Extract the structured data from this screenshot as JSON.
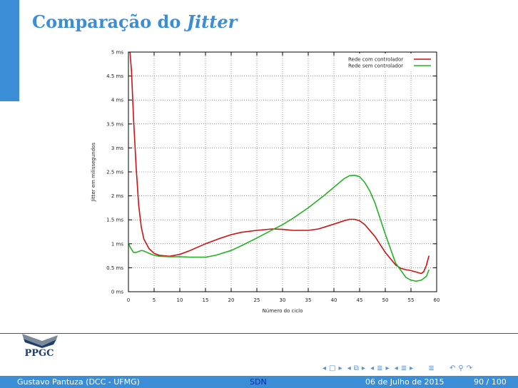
{
  "slide": {
    "title_main": "Comparação do ",
    "title_em": "Jitter"
  },
  "footer": {
    "author": "Gustavo Pantuza (DCC - UFMG)",
    "short_title": "SDN",
    "date": "06 de Julho de 2015",
    "page": "90 / 100"
  },
  "logo": {
    "text": "PPGC"
  },
  "nav_icons": [
    "prev-frame-icon",
    "frame-icon",
    "next-frame-icon",
    "prev-subsection-icon",
    "subsection-icon",
    "next-subsection-icon",
    "prev-section-icon",
    "section-icon",
    "next-section-icon",
    "toc-icon",
    "back-icon",
    "search-icon",
    "forward-icon"
  ],
  "colors": {
    "accent": "#3b8ed6",
    "series_red": "#cc1111",
    "series_green": "#22b322"
  },
  "chart_data": {
    "type": "line",
    "title": "",
    "xlabel": "Número do ciclo",
    "ylabel": "Jitter em milissegundos",
    "xlim": [
      0,
      60
    ],
    "ylim": [
      0,
      5
    ],
    "xticks": [
      0,
      5,
      10,
      15,
      20,
      25,
      30,
      35,
      40,
      45,
      50,
      55,
      60
    ],
    "xtick_labels": [
      "0",
      "5",
      "10",
      "15",
      "20",
      "25",
      "30",
      "35",
      "40",
      "45",
      "50",
      "55",
      "60"
    ],
    "yticks": [
      0,
      0.5,
      1,
      1.5,
      2,
      2.5,
      3,
      3.5,
      4,
      4.5,
      5
    ],
    "ytick_labels": [
      "0 ms",
      "0.5 ms",
      "1 ms",
      "1.5 ms",
      "2 ms",
      "2.5 ms",
      "3 ms",
      "3.5 ms",
      "4 ms",
      "4.5 ms",
      "5 ms"
    ],
    "grid": true,
    "legend_position": "top-right",
    "series": [
      {
        "name": "Rede com controlador",
        "color": "#cc1111",
        "x": [
          0.3,
          0.6,
          1,
          1.5,
          2,
          2.5,
          3,
          4,
          5,
          6,
          8,
          10,
          12,
          15,
          18,
          20,
          22,
          25,
          28,
          30,
          32,
          35,
          37,
          40,
          42,
          43,
          44,
          45,
          46,
          48,
          50,
          52,
          53,
          54,
          55,
          56,
          57,
          57.5,
          58,
          58.5
        ],
        "values": [
          5.0,
          4.6,
          3.6,
          2.6,
          1.8,
          1.35,
          1.1,
          0.9,
          0.8,
          0.76,
          0.74,
          0.78,
          0.86,
          1.0,
          1.12,
          1.19,
          1.24,
          1.28,
          1.31,
          1.3,
          1.28,
          1.28,
          1.31,
          1.41,
          1.48,
          1.51,
          1.51,
          1.48,
          1.4,
          1.15,
          0.82,
          0.56,
          0.49,
          0.46,
          0.44,
          0.41,
          0.38,
          0.42,
          0.55,
          0.75
        ]
      },
      {
        "name": "Rede sem controlador",
        "color": "#22b322",
        "x": [
          0,
          0.5,
          1,
          1.5,
          2,
          2.5,
          3,
          4,
          5,
          6,
          8,
          10,
          12,
          15,
          17,
          20,
          22,
          25,
          28,
          30,
          32,
          35,
          38,
          40,
          42,
          43,
          44,
          45,
          46,
          47,
          48,
          50,
          52,
          54,
          55,
          56,
          57,
          58,
          58.5
        ],
        "values": [
          1.0,
          0.9,
          0.82,
          0.82,
          0.84,
          0.86,
          0.85,
          0.8,
          0.76,
          0.74,
          0.73,
          0.73,
          0.72,
          0.72,
          0.76,
          0.86,
          0.96,
          1.12,
          1.29,
          1.4,
          1.53,
          1.75,
          2.0,
          2.18,
          2.36,
          2.42,
          2.43,
          2.4,
          2.28,
          2.1,
          1.85,
          1.2,
          0.6,
          0.3,
          0.24,
          0.22,
          0.24,
          0.32,
          0.46
        ]
      }
    ]
  }
}
